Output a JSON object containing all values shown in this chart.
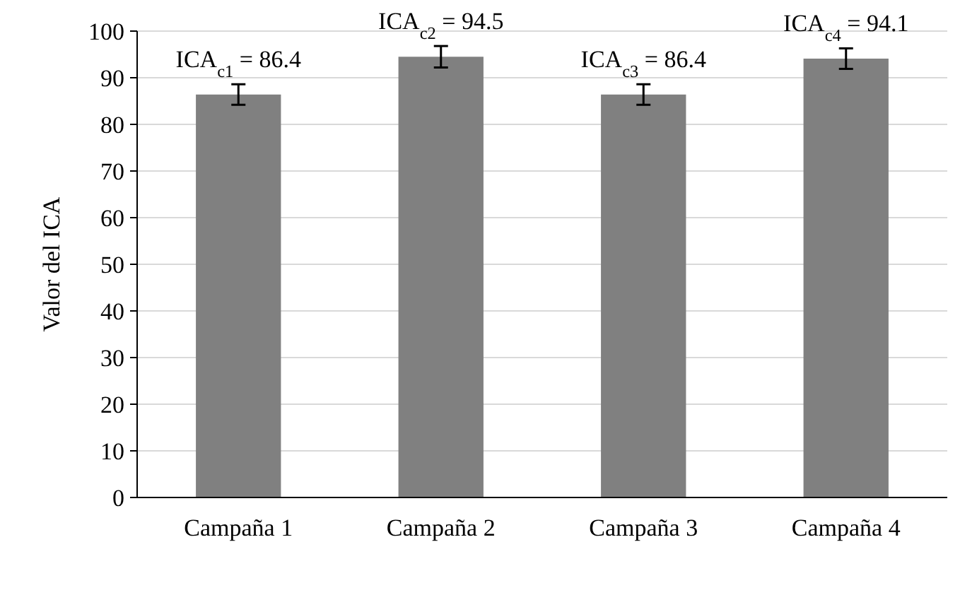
{
  "chart_data": {
    "type": "bar",
    "ylabel": "Valor del ICA",
    "categories": [
      "Campaña 1",
      "Campaña 2",
      "Campaña 3",
      "Campaña 4"
    ],
    "values": [
      86.4,
      94.5,
      86.4,
      94.1
    ],
    "errors": [
      2.2,
      2.3,
      2.2,
      2.2
    ],
    "value_labels": [
      "ICA$_{c1}$ = 86.4",
      "ICA$_{c2}$ = 94.5",
      "ICA$_{c3}$ = 86.4",
      "ICA$_{c4}$ = 94.1"
    ],
    "color": "#808080",
    "ylim": [
      0,
      100
    ],
    "yticks": [
      0,
      10,
      20,
      30,
      40,
      50,
      60,
      70,
      80,
      90,
      100
    ],
    "grid": "y"
  }
}
